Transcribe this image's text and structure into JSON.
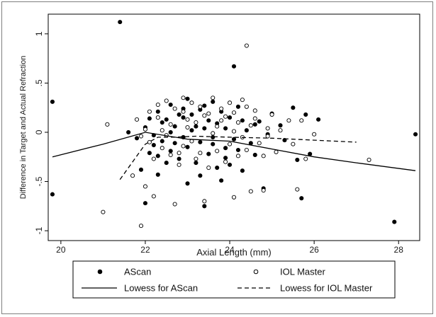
{
  "chart_data": {
    "type": "scatter",
    "title": "",
    "xlabel": "Axial Length (mm)",
    "ylabel": "Difference in Target and Actual Refraction",
    "xlim": [
      19.7,
      28.5
    ],
    "ylim": [
      -1.1,
      1.2
    ],
    "x_ticks": [
      20,
      22,
      24,
      26,
      28
    ],
    "x_tick_labels": [
      "20",
      "22",
      "24",
      "26",
      "28"
    ],
    "y_ticks": [
      1,
      0.5,
      0,
      -0.5,
      -1
    ],
    "y_tick_labels": [
      "1",
      ".5",
      "0",
      "-.5",
      "-1"
    ],
    "grid": false,
    "legend_position": "bottom",
    "series": [
      {
        "name": "AScan",
        "kind": "scatter",
        "marker": "filled-circle",
        "color": "#000000",
        "points": [
          [
            19.8,
            0.31
          ],
          [
            19.8,
            -0.63
          ],
          [
            21.4,
            1.12
          ],
          [
            22.0,
            -0.72
          ],
          [
            23.4,
            -0.75
          ],
          [
            24.1,
            0.67
          ],
          [
            25.7,
            -0.67
          ],
          [
            27.9,
            -0.91
          ],
          [
            28.4,
            -0.02
          ],
          [
            24.8,
            -0.57
          ],
          [
            23.3,
            -0.44
          ],
          [
            22.3,
            -0.43
          ],
          [
            21.9,
            -0.38
          ],
          [
            21.6,
            0.0
          ],
          [
            22.1,
            0.14
          ],
          [
            22.5,
            0.13
          ],
          [
            22.7,
            0.06
          ],
          [
            22.9,
            0.15
          ],
          [
            23.1,
            0.18
          ],
          [
            23.3,
            0.23
          ],
          [
            23.6,
            0.31
          ],
          [
            23.8,
            0.21
          ],
          [
            24.0,
            0.15
          ],
          [
            24.3,
            0.12
          ],
          [
            24.6,
            0.08
          ],
          [
            25.0,
            0.19
          ],
          [
            25.5,
            0.25
          ],
          [
            26.1,
            0.13
          ],
          [
            25.8,
            0.18
          ],
          [
            25.2,
            0.07
          ],
          [
            24.9,
            -0.02
          ],
          [
            24.5,
            -0.11
          ],
          [
            24.2,
            -0.18
          ],
          [
            23.9,
            -0.26
          ],
          [
            23.7,
            -0.36
          ],
          [
            23.5,
            -0.22
          ],
          [
            23.2,
            -0.31
          ],
          [
            23.0,
            -0.15
          ],
          [
            22.8,
            -0.27
          ],
          [
            22.6,
            -0.19
          ],
          [
            22.4,
            -0.09
          ],
          [
            22.2,
            -0.03
          ],
          [
            22.0,
            0.05
          ],
          [
            21.8,
            -0.06
          ],
          [
            22.3,
            0.21
          ],
          [
            22.6,
            0.28
          ],
          [
            23.0,
            0.34
          ],
          [
            23.4,
            0.27
          ],
          [
            23.9,
            0.04
          ],
          [
            24.1,
            -0.07
          ],
          [
            24.4,
            0.02
          ],
          [
            22.9,
            -0.05
          ],
          [
            23.2,
            0.06
          ],
          [
            23.6,
            -0.12
          ],
          [
            22.5,
            -0.31
          ],
          [
            23.8,
            -0.49
          ],
          [
            22.1,
            -0.21
          ],
          [
            24.7,
            0.11
          ],
          [
            25.3,
            -0.08
          ],
          [
            25.9,
            -0.22
          ],
          [
            24.2,
            0.26
          ],
          [
            22.7,
            -0.11
          ],
          [
            23.1,
            0.02
          ],
          [
            23.5,
            0.12
          ],
          [
            22.2,
            -0.13
          ],
          [
            23.7,
            0.09
          ],
          [
            24.0,
            -0.33
          ],
          [
            22.4,
            0.1
          ],
          [
            23.3,
            -0.1
          ],
          [
            22.8,
            0.18
          ],
          [
            24.6,
            -0.23
          ],
          [
            23.0,
            -0.52
          ],
          [
            22.6,
            0.0
          ],
          [
            23.9,
            -0.16
          ],
          [
            25.6,
            -0.28
          ],
          [
            22.3,
            -0.24
          ],
          [
            23.4,
            0.04
          ],
          [
            24.3,
            -0.39
          ],
          [
            22.9,
            0.24
          ],
          [
            23.6,
            -0.05
          ]
        ]
      },
      {
        "name": "IOL Master",
        "kind": "scatter",
        "marker": "hollow-circle",
        "color": "#000000",
        "points": [
          [
            21.0,
            -0.81
          ],
          [
            21.9,
            -0.95
          ],
          [
            24.4,
            0.88
          ],
          [
            21.1,
            0.08
          ],
          [
            21.8,
            0.13
          ],
          [
            22.2,
            -0.65
          ],
          [
            22.7,
            -0.73
          ],
          [
            23.4,
            -0.7
          ],
          [
            24.1,
            -0.66
          ],
          [
            24.5,
            -0.6
          ],
          [
            24.8,
            -0.59
          ],
          [
            25.6,
            -0.58
          ],
          [
            27.3,
            -0.28
          ],
          [
            25.8,
            -0.27
          ],
          [
            26.0,
            -0.02
          ],
          [
            24.3,
            0.33
          ],
          [
            24.0,
            0.3
          ],
          [
            23.6,
            0.35
          ],
          [
            23.1,
            0.3
          ],
          [
            22.5,
            0.32
          ],
          [
            22.3,
            0.28
          ],
          [
            22.9,
            0.21
          ],
          [
            23.3,
            0.26
          ],
          [
            23.8,
            0.24
          ],
          [
            24.6,
            0.22
          ],
          [
            25.0,
            0.18
          ],
          [
            25.4,
            0.12
          ],
          [
            25.2,
            0.02
          ],
          [
            24.9,
            -0.04
          ],
          [
            24.7,
            -0.11
          ],
          [
            24.4,
            -0.18
          ],
          [
            24.2,
            -0.24
          ],
          [
            23.9,
            -0.3
          ],
          [
            23.5,
            -0.36
          ],
          [
            23.2,
            -0.27
          ],
          [
            22.8,
            -0.21
          ],
          [
            22.4,
            -0.16
          ],
          [
            22.1,
            -0.1
          ],
          [
            21.9,
            -0.04
          ],
          [
            22.0,
            0.03
          ],
          [
            22.6,
            0.08
          ],
          [
            23.0,
            0.13
          ],
          [
            23.4,
            0.17
          ],
          [
            23.7,
            0.06
          ],
          [
            24.1,
            0.01
          ],
          [
            24.5,
            0.07
          ],
          [
            22.2,
            -0.27
          ],
          [
            22.5,
            -0.03
          ],
          [
            23.1,
            -0.09
          ],
          [
            23.6,
            -0.01
          ],
          [
            24.0,
            -0.12
          ],
          [
            24.8,
            -0.24
          ],
          [
            25.1,
            -0.2
          ],
          [
            25.7,
            0.12
          ],
          [
            22.3,
            0.15
          ],
          [
            22.8,
            -0.33
          ],
          [
            23.3,
            -0.21
          ],
          [
            23.8,
            0.12
          ],
          [
            24.3,
            -0.05
          ],
          [
            21.7,
            -0.44
          ],
          [
            22.0,
            -0.55
          ],
          [
            24.6,
            0.14
          ],
          [
            23.0,
            0.05
          ],
          [
            22.7,
            0.24
          ],
          [
            23.5,
            0.19
          ],
          [
            22.4,
            0.02
          ],
          [
            24.2,
            0.1
          ],
          [
            23.9,
            0.16
          ],
          [
            22.9,
            -0.14
          ],
          [
            23.2,
            0.1
          ],
          [
            24.4,
            0.26
          ],
          [
            25.5,
            -0.12
          ],
          [
            22.1,
            0.21
          ],
          [
            22.6,
            -0.23
          ],
          [
            23.7,
            -0.19
          ],
          [
            24.9,
            0.04
          ],
          [
            22.9,
            0.35
          ],
          [
            24.1,
            0.2
          ]
        ]
      },
      {
        "name": "Lowess for AScan",
        "kind": "line",
        "dash": "solid",
        "color": "#000000",
        "points": [
          [
            19.8,
            -0.25
          ],
          [
            21.0,
            -0.12
          ],
          [
            22.0,
            0.0
          ],
          [
            23.0,
            -0.07
          ],
          [
            24.0,
            -0.09
          ],
          [
            25.0,
            -0.17
          ],
          [
            26.0,
            -0.25
          ],
          [
            27.0,
            -0.31
          ],
          [
            28.4,
            -0.39
          ]
        ]
      },
      {
        "name": "Lowess for IOL Master",
        "kind": "line",
        "dash": "dashed",
        "color": "#000000",
        "points": [
          [
            21.4,
            -0.48
          ],
          [
            21.7,
            -0.3
          ],
          [
            22.0,
            -0.12
          ],
          [
            22.3,
            -0.05
          ],
          [
            22.7,
            -0.05
          ],
          [
            23.2,
            -0.04
          ],
          [
            24.0,
            -0.05
          ],
          [
            25.0,
            -0.06
          ],
          [
            26.0,
            -0.08
          ],
          [
            27.0,
            -0.1
          ]
        ]
      }
    ]
  }
}
